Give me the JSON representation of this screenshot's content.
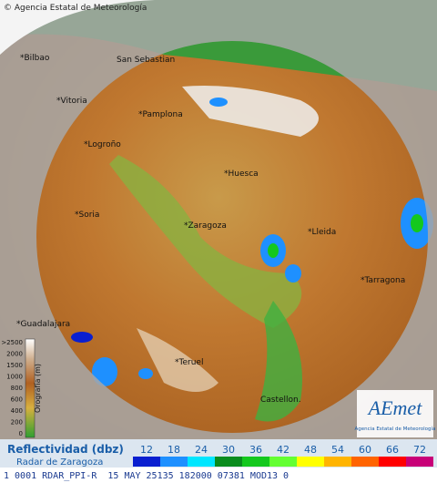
{
  "copyright": "© Agencia Estatal de Meteorología",
  "cities": [
    "*Bilbao",
    "San Sebastian",
    "*Vitoria",
    "*Pamplona",
    "*Logroño",
    "*Huesca",
    "*Soria",
    "*Zaragoza",
    "*Lleida",
    "*Tarragona",
    "*Guadalajara",
    "*Teruel",
    "Castellon."
  ],
  "orography": {
    "label": "Orografía (m)",
    "ticks": [
      ">2500",
      "2000",
      "1500",
      "1000",
      "800",
      "600",
      "400",
      "200",
      "0"
    ]
  },
  "logo": {
    "name": "AEmet",
    "subtitle": "Agencia Estatal de Meteorología"
  },
  "legend": {
    "title": "Reflectividad (dbz)",
    "subtitle": "Radar de Zaragoza",
    "values": [
      12,
      18,
      24,
      30,
      36,
      42,
      48,
      54,
      60,
      66,
      72
    ],
    "colors": [
      "#0a1fd0",
      "#1e90ff",
      "#00e6ff",
      "#0a8c1e",
      "#14c81e",
      "#64ff32",
      "#ffff00",
      "#ffb400",
      "#ff6400",
      "#ff0000",
      "#c80078"
    ]
  },
  "status": "1 0001 RDAR_PPI-R  15 MAY 25135 182000 07381 MOD13 0"
}
